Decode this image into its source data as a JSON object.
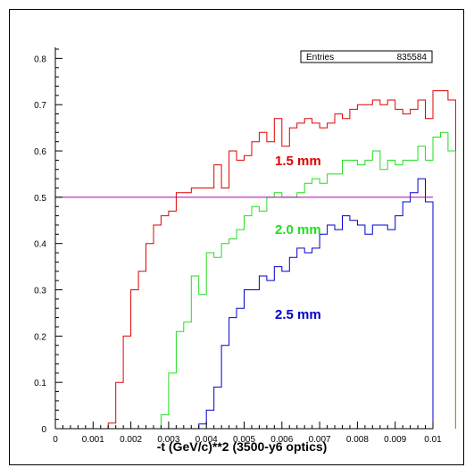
{
  "stats": {
    "label": "Entries",
    "value": "835584"
  },
  "colors": {
    "red": "#e00000",
    "green": "#22dd22",
    "blue": "#0000cc",
    "threshold": "#aa00aa",
    "axis": "#000000"
  },
  "chart_data": {
    "type": "line",
    "step": true,
    "xlabel": "-t (GeV/c)**2  (3500-y6  optics)",
    "ylabel": "",
    "xlim": [
      0,
      0.01
    ],
    "ylim": [
      0,
      0.82
    ],
    "x_ticks": [
      "0",
      "0.001",
      "0.002",
      "0.003",
      "0.004",
      "0.005",
      "0.006",
      "0.007",
      "0.008",
      "0.009",
      "0.01"
    ],
    "y_ticks": [
      "0",
      "0.1",
      "0.2",
      "0.3",
      "0.4",
      "0.5",
      "0.6",
      "0.7",
      "0.8"
    ],
    "bin_width": 0.0002,
    "bin_edges_start": 0,
    "threshold": 0.5,
    "series": [
      {
        "name": "1.5 mm",
        "color": "#e00000",
        "values": [
          0,
          0,
          0,
          0,
          0,
          0,
          0,
          0.012,
          0.1,
          0.2,
          0.3,
          0.34,
          0.4,
          0.44,
          0.46,
          0.47,
          0.51,
          0.51,
          0.52,
          0.52,
          0.52,
          0.57,
          0.52,
          0.6,
          0.58,
          0.59,
          0.62,
          0.64,
          0.62,
          0.67,
          0.61,
          0.65,
          0.66,
          0.67,
          0.66,
          0.65,
          0.66,
          0.68,
          0.67,
          0.69,
          0.7,
          0.7,
          0.71,
          0.7,
          0.71,
          0.69,
          0.68,
          0.69,
          0.71,
          0.67,
          0.73,
          0.73,
          0.71
        ]
      },
      {
        "name": "2.0 mm",
        "color": "#22dd22",
        "values": [
          0,
          0,
          0,
          0,
          0,
          0,
          0,
          0,
          0,
          0,
          0,
          0,
          0,
          0,
          0.03,
          0.12,
          0.21,
          0.23,
          0.33,
          0.29,
          0.38,
          0.37,
          0.4,
          0.41,
          0.43,
          0.46,
          0.48,
          0.47,
          0.5,
          0.51,
          0.5,
          0.5,
          0.51,
          0.53,
          0.54,
          0.53,
          0.55,
          0.55,
          0.58,
          0.58,
          0.57,
          0.58,
          0.6,
          0.56,
          0.58,
          0.57,
          0.58,
          0.58,
          0.61,
          0.58,
          0.63,
          0.64,
          0.6
        ]
      },
      {
        "name": "2.5 mm",
        "color": "#0000cc",
        "values": [
          0,
          0,
          0,
          0,
          0,
          0,
          0,
          0,
          0,
          0,
          0,
          0,
          0,
          0,
          0,
          0,
          0,
          0,
          0,
          0.01,
          0.04,
          0.09,
          0.18,
          0.24,
          0.26,
          0.3,
          0.3,
          0.33,
          0.32,
          0.35,
          0.34,
          0.37,
          0.39,
          0.38,
          0.39,
          0.42,
          0.44,
          0.43,
          0.46,
          0.45,
          0.44,
          0.42,
          0.44,
          0.44,
          0.43,
          0.46,
          0.49,
          0.51,
          0.54,
          0.49
        ]
      }
    ]
  }
}
